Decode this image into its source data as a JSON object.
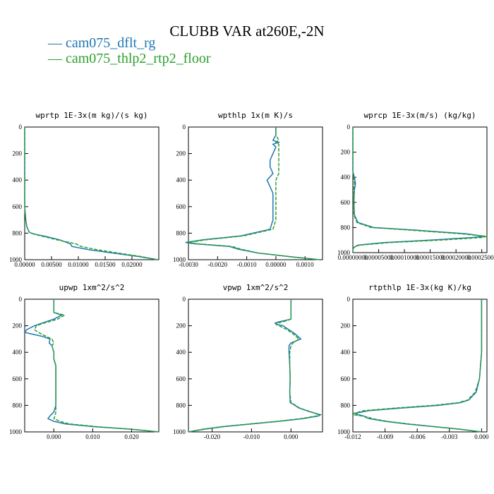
{
  "title": "CLUBB VAR at260E,-2N",
  "legend": [
    {
      "label": "cam075_dflt_rg",
      "color": "#1f77b4"
    },
    {
      "label": "cam075_thlp2_rtp2_floor",
      "color": "#2ca02c"
    }
  ],
  "chart_data": [
    {
      "type": "line",
      "title": "wprtp  1E-3x(m kg)/(s kg)",
      "xlim": [
        0,
        0.025
      ],
      "ylim": [
        1000,
        0
      ],
      "xticks": [
        "0.00000",
        "0.00500",
        "0.01000",
        "0.01500",
        "0.02000"
      ],
      "xtick_values": [
        0,
        0.005,
        0.01,
        0.015,
        0.02
      ],
      "yticks": [
        "0",
        "200",
        "400",
        "600",
        "800",
        "1000"
      ],
      "yvalues": [
        0,
        100,
        200,
        300,
        400,
        500,
        600,
        700,
        750,
        790,
        800,
        810,
        825,
        850,
        880,
        900,
        925,
        950,
        975,
        1000
      ],
      "series": [
        {
          "name": "cam075_dflt_rg",
          "color": "#1f77b4",
          "x": [
            0,
            0,
            0,
            0,
            0,
            0,
            0,
            0.0002,
            0.0004,
            0.0008,
            0.0012,
            0.0022,
            0.004,
            0.0065,
            0.0085,
            0.0088,
            0.012,
            0.0165,
            0.021,
            0.0248
          ]
        },
        {
          "name": "cam075_thlp2_rtp2_floor",
          "color": "#2ca02c",
          "x": [
            0,
            0,
            0,
            0,
            0,
            0,
            0,
            0.0002,
            0.0004,
            0.0008,
            0.0012,
            0.002,
            0.0035,
            0.006,
            0.0095,
            0.0105,
            0.0135,
            0.0175,
            0.0215,
            0.0248
          ]
        }
      ]
    },
    {
      "type": "line",
      "title": "wpthlp  1x(m K)/s",
      "xlim": [
        -0.003,
        0.0016
      ],
      "ylim": [
        1000,
        0
      ],
      "xticks": [
        "-0.0030",
        "-0.0020",
        "-0.0010",
        "0.00000",
        "0.0010"
      ],
      "xtick_values": [
        -0.003,
        -0.002,
        -0.001,
        0,
        0.001
      ],
      "yticks": [
        "0",
        "200",
        "400",
        "600",
        "800",
        "1000"
      ],
      "yvalues": [
        0,
        60,
        100,
        115,
        130,
        150,
        200,
        250,
        300,
        350,
        400,
        450,
        500,
        600,
        700,
        770,
        820,
        850,
        870,
        880,
        900,
        920,
        950,
        980,
        1000
      ],
      "series": [
        {
          "name": "cam075_dflt_rg",
          "color": "#1f77b4",
          "x": [
            0,
            0,
            -0.0001,
            0.0001,
            -0.0001,
            0,
            -0.0001,
            -0.0002,
            -0.0002,
            -0.0001,
            -0.0003,
            -0.0002,
            -0.0001,
            -0.0001,
            -0.0001,
            -0.0002,
            -0.0012,
            -0.0025,
            -0.0031,
            -0.0028,
            -0.0016,
            -0.0013,
            -0.0006,
            0.0006,
            0.0015
          ]
        },
        {
          "name": "cam075_thlp2_rtp2_floor",
          "color": "#2ca02c",
          "x": [
            0,
            0,
            0.0001,
            0,
            0.0001,
            0.0001,
            0.0001,
            0.0001,
            0.0001,
            0.0001,
            0,
            0,
            0,
            0,
            0,
            -0.0001,
            -0.0011,
            -0.0024,
            -0.003,
            -0.0027,
            -0.0015,
            -0.0012,
            -0.0006,
            0.0006,
            0.0015
          ]
        }
      ]
    },
    {
      "type": "line",
      "title": "wprcp  1E-3x(m/s) (kg/kg)",
      "xlim": [
        0,
        0.00026
      ],
      "ylim": [
        1000,
        0
      ],
      "xticks": [
        "0.00000000",
        "0.00005000",
        "0.00010000",
        "0.00015000",
        "0.00020000",
        "0.00025000"
      ],
      "xtick_values": [
        0,
        5e-05,
        0.0001,
        0.00015,
        0.0002,
        0.00025
      ],
      "yticks": [
        "0",
        "200",
        "400",
        "600",
        "800",
        "1000"
      ],
      "yvalues": [
        0,
        200,
        350,
        420,
        450,
        480,
        500,
        600,
        700,
        760,
        800,
        820,
        850,
        870,
        880,
        900,
        920,
        940,
        950,
        970,
        1000
      ],
      "series": [
        {
          "name": "cam075_dflt_rg",
          "color": "#1f77b4",
          "x": [
            0,
            0,
            0,
            4e-06,
            5e-06,
            4e-06,
            3e-06,
            2e-06,
            3e-06,
            1e-05,
            4e-05,
            0.00012,
            0.00022,
            0.000255,
            0.00023,
            0.00015,
            6e-05,
            1e-05,
            5e-06,
            0,
            0
          ]
        },
        {
          "name": "cam075_thlp2_rtp2_floor",
          "color": "#2ca02c",
          "x": [
            0,
            0,
            0,
            2e-06,
            3e-06,
            2e-06,
            2e-06,
            2e-06,
            2e-06,
            8e-06,
            3.5e-05,
            0.00011,
            0.00021,
            0.00026,
            0.00025,
            0.00017,
            7e-05,
            1.5e-05,
            4e-06,
            0,
            0
          ]
        }
      ]
    },
    {
      "type": "line",
      "title": "upwp  1xm^2/s^2",
      "xlim": [
        -0.0075,
        0.027
      ],
      "ylim": [
        1000,
        0
      ],
      "xticks": [
        "0.000",
        "0.010",
        "0.020"
      ],
      "xtick_values": [
        0,
        0.01,
        0.02
      ],
      "yticks": [
        "0",
        "200",
        "400",
        "600",
        "800",
        "1000"
      ],
      "yvalues": [
        0,
        60,
        100,
        120,
        150,
        180,
        200,
        230,
        250,
        280,
        300,
        330,
        350,
        400,
        450,
        500,
        600,
        700,
        800,
        850,
        880,
        900,
        920,
        940,
        960,
        980,
        1000
      ],
      "series": [
        {
          "name": "cam075_dflt_rg",
          "color": "#1f77b4",
          "x": [
            0,
            0,
            0,
            0.002,
            0,
            -0.003,
            -0.005,
            -0.007,
            -0.0075,
            -0.003,
            -0.001,
            -0.0012,
            -0.0005,
            0,
            0,
            0.0005,
            0.0005,
            0.0005,
            0.0005,
            0,
            -0.001,
            -0.0015,
            0,
            0.003,
            0.01,
            0.02,
            0.027
          ]
        },
        {
          "name": "cam075_thlp2_rtp2_floor",
          "color": "#2ca02c",
          "x": [
            0,
            0,
            0,
            0.0028,
            0.001,
            -0.0025,
            -0.0045,
            -0.005,
            -0.004,
            -0.002,
            -0.0005,
            0,
            -0.0005,
            0,
            0,
            0.0005,
            0.0005,
            0.0005,
            0.0005,
            0.0005,
            0.0003,
            0,
            0.0015,
            0.004,
            0.011,
            0.02,
            0.027
          ]
        }
      ]
    },
    {
      "type": "line",
      "title": "vpwp  1xm^2/s^2",
      "xlim": [
        -0.026,
        0.008
      ],
      "ylim": [
        1000,
        0
      ],
      "xticks": [
        "-0.020",
        "-0.010",
        "0.000"
      ],
      "xtick_values": [
        -0.02,
        -0.01,
        0
      ],
      "yticks": [
        "0",
        "200",
        "400",
        "600",
        "800",
        "1000"
      ],
      "yvalues": [
        0,
        100,
        150,
        170,
        180,
        190,
        200,
        230,
        260,
        300,
        330,
        350,
        400,
        500,
        600,
        700,
        780,
        800,
        820,
        850,
        870,
        880,
        900,
        920,
        940,
        960,
        980,
        1000
      ],
      "series": [
        {
          "name": "cam075_dflt_rg",
          "color": "#1f77b4",
          "x": [
            0,
            0,
            0,
            -0.003,
            -0.004,
            -0.0035,
            -0.002,
            -0.0005,
            0.001,
            0.0025,
            0,
            -0.0005,
            -0.0005,
            -0.0003,
            -0.0002,
            -0.0003,
            -0.0002,
            0.001,
            0.002,
            0.005,
            0.0075,
            0.007,
            0.003,
            -0.003,
            -0.01,
            -0.017,
            -0.022,
            -0.026
          ]
        },
        {
          "name": "cam075_thlp2_rtp2_floor",
          "color": "#2ca02c",
          "x": [
            0,
            0,
            0,
            -0.002,
            -0.0035,
            -0.0038,
            -0.003,
            -0.001,
            0.0005,
            0.002,
            0.0005,
            0,
            -0.0003,
            -0.0003,
            -0.0002,
            -0.0003,
            0,
            0.0012,
            0.0022,
            0.0052,
            0.007,
            0.0065,
            0.0025,
            -0.0035,
            -0.0105,
            -0.0175,
            -0.0225,
            -0.026
          ]
        }
      ]
    },
    {
      "type": "line",
      "title": "rtpthlp  1E-3x(kg K)/kg",
      "xlim": [
        -0.012,
        0.0005
      ],
      "ylim": [
        1000,
        0
      ],
      "xticks": [
        "-0.012",
        "-0.009",
        "-0.006",
        "-0.003",
        "0.000"
      ],
      "xtick_values": [
        -0.012,
        -0.009,
        -0.006,
        -0.003,
        0
      ],
      "yticks": [
        "0",
        "200",
        "400",
        "600",
        "800",
        "1000"
      ],
      "yvalues": [
        0,
        200,
        400,
        500,
        600,
        700,
        760,
        780,
        800,
        820,
        840,
        860,
        870,
        880,
        890,
        900,
        920,
        940,
        960,
        980,
        1000
      ],
      "series": [
        {
          "name": "cam075_dflt_rg",
          "color": "#1f77b4",
          "x": [
            0,
            0,
            0,
            -0.0001,
            -0.0002,
            -0.0005,
            -0.0012,
            -0.002,
            -0.004,
            -0.0075,
            -0.0105,
            -0.0118,
            -0.0115,
            -0.011,
            -0.0108,
            -0.0105,
            -0.009,
            -0.007,
            -0.0045,
            -0.002,
            0
          ]
        },
        {
          "name": "cam075_thlp2_rtp2_floor",
          "color": "#2ca02c",
          "x": [
            0,
            0,
            0,
            -0.0001,
            -0.0002,
            -0.0006,
            -0.0013,
            -0.0022,
            -0.0045,
            -0.008,
            -0.011,
            -0.0119,
            -0.012,
            -0.0112,
            -0.0105,
            -0.0102,
            -0.0088,
            -0.0068,
            -0.0044,
            -0.002,
            0
          ]
        }
      ]
    }
  ]
}
